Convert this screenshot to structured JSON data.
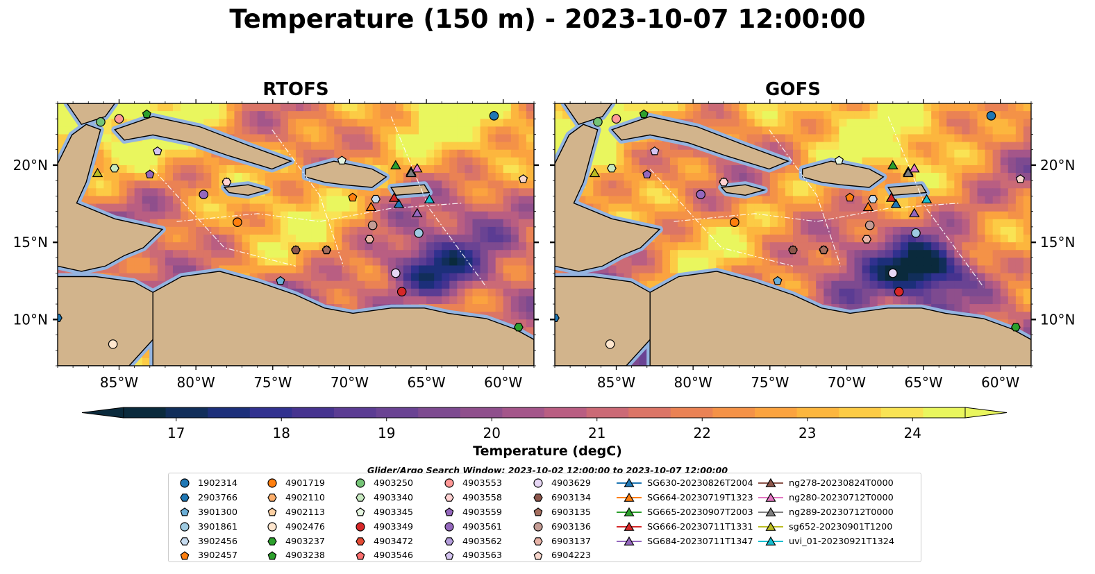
{
  "title": "Temperature (150 m) - 2023-10-07 12:00:00",
  "panels": [
    {
      "title": "RTOFS"
    },
    {
      "title": "GOFS"
    }
  ],
  "axes": {
    "lon_ticks": [
      "85°W",
      "80°W",
      "75°W",
      "70°W",
      "65°W",
      "60°W"
    ],
    "lat_ticks": [
      "20°N",
      "15°N",
      "10°N"
    ],
    "lon_values": [
      -85,
      -80,
      -75,
      -70,
      -65,
      -60
    ],
    "lat_values": [
      20,
      15,
      10
    ],
    "lon_range": [
      -89,
      -58
    ],
    "lat_range": [
      7,
      24
    ]
  },
  "colorbar": {
    "label": "Temperature (degC)",
    "ticks": [
      "17",
      "18",
      "19",
      "20",
      "21",
      "22",
      "23",
      "24"
    ],
    "tick_values": [
      17,
      18,
      19,
      20,
      21,
      22,
      23,
      24
    ],
    "range": [
      16.5,
      24.5
    ],
    "extend": "both",
    "colors": [
      "#0a2a3c",
      "#112e5a",
      "#1c2f7a",
      "#31318f",
      "#46338f",
      "#5b3c93",
      "#6a4393",
      "#7d4a90",
      "#8f4f8c",
      "#a4568a",
      "#b95e82",
      "#cb6a76",
      "#db7566",
      "#ea8254",
      "#f49247",
      "#fba33f",
      "#fcb63e",
      "#fccb45",
      "#f9e354",
      "#e9f65e"
    ]
  },
  "search_window": "Glider/Argo Search Window: 2023-10-02 12:00:00 to 2023-10-07 12:00:00",
  "legend": {
    "columns": [
      [
        {
          "label": "1902314",
          "marker": "circle",
          "color": "#1f77b4"
        },
        {
          "label": "2903766",
          "marker": "hexagon",
          "color": "#1f77b4"
        },
        {
          "label": "3901300",
          "marker": "pentagon",
          "color": "#6baed6"
        },
        {
          "label": "3901861",
          "marker": "circle",
          "color": "#9ecae1"
        },
        {
          "label": "3902456",
          "marker": "hexagon",
          "color": "#c6dbef"
        },
        {
          "label": "3902457",
          "marker": "pentagon",
          "color": "#ff7f0e"
        }
      ],
      [
        {
          "label": "4901719",
          "marker": "circle",
          "color": "#ff7f0e"
        },
        {
          "label": "4902110",
          "marker": "hexagon",
          "color": "#fdae6b"
        },
        {
          "label": "4902113",
          "marker": "pentagon",
          "color": "#fdd0a2"
        },
        {
          "label": "4902476",
          "marker": "circle",
          "color": "#fee6ce"
        },
        {
          "label": "4903237",
          "marker": "hexagon",
          "color": "#2ca02c"
        },
        {
          "label": "4903238",
          "marker": "pentagon",
          "color": "#2ca02c"
        }
      ],
      [
        {
          "label": "4903250",
          "marker": "circle",
          "color": "#74c476"
        },
        {
          "label": "4903340",
          "marker": "hexagon",
          "color": "#c7e9c0"
        },
        {
          "label": "4903345",
          "marker": "pentagon",
          "color": "#e5f5e0"
        },
        {
          "label": "4903349",
          "marker": "circle",
          "color": "#d62728"
        },
        {
          "label": "4903472",
          "marker": "hexagon",
          "color": "#e34a33"
        },
        {
          "label": "4903546",
          "marker": "pentagon",
          "color": "#fc6e6e"
        }
      ],
      [
        {
          "label": "4903553",
          "marker": "circle",
          "color": "#ff9896"
        },
        {
          "label": "4903558",
          "marker": "hexagon",
          "color": "#ffd1d1"
        },
        {
          "label": "4903559",
          "marker": "pentagon",
          "color": "#9467bd"
        },
        {
          "label": "4903561",
          "marker": "circle",
          "color": "#9467bd"
        },
        {
          "label": "4903562",
          "marker": "hexagon",
          "color": "#b39ddb"
        },
        {
          "label": "4903563",
          "marker": "pentagon",
          "color": "#d4c4f0"
        }
      ],
      [
        {
          "label": "4903629",
          "marker": "circle",
          "color": "#e7d7f5"
        },
        {
          "label": "6903134",
          "marker": "hexagon",
          "color": "#8c564b"
        },
        {
          "label": "6903135",
          "marker": "pentagon",
          "color": "#a56e5f"
        },
        {
          "label": "6903136",
          "marker": "circle",
          "color": "#c49c94"
        },
        {
          "label": "6903137",
          "marker": "hexagon",
          "color": "#e8b4a8"
        },
        {
          "label": "6904223",
          "marker": "pentagon",
          "color": "#f7d6cc"
        }
      ],
      [
        {
          "label": "SG630-20230826T2004",
          "marker": "triangle-line",
          "color": "#1f77b4"
        },
        {
          "label": "SG664-20230719T1323",
          "marker": "triangle-line",
          "color": "#ff7f0e"
        },
        {
          "label": "SG665-20230907T2003",
          "marker": "triangle-line",
          "color": "#2ca02c"
        },
        {
          "label": "SG666-20230711T1331",
          "marker": "triangle-line",
          "color": "#d62728"
        },
        {
          "label": "SG684-20230711T1347",
          "marker": "triangle-line",
          "color": "#9467bd"
        }
      ],
      [
        {
          "label": "ng278-20230824T0000",
          "marker": "triangle-line",
          "color": "#8c564b"
        },
        {
          "label": "ng280-20230712T0000",
          "marker": "triangle-line",
          "color": "#e377c2"
        },
        {
          "label": "ng289-20230712T0000",
          "marker": "triangle-line",
          "color": "#7f7f7f"
        },
        {
          "label": "sg652-20230901T1200",
          "marker": "triangle-line",
          "color": "#bcbd22"
        },
        {
          "label": "uvi_01-20230921T1324",
          "marker": "triangle-line",
          "color": "#17becf"
        }
      ]
    ]
  },
  "map_colors": {
    "land": "#d2b48c",
    "shelf": "#94b4e0",
    "coast": "#000000",
    "eez": "#ffffff"
  },
  "markers": [
    {
      "id": "1902314",
      "lon": -60.6,
      "lat": 23.2
    },
    {
      "id": "2903766",
      "lon": -89.0,
      "lat": 10.1
    },
    {
      "id": "3901300",
      "lon": -74.5,
      "lat": 12.5
    },
    {
      "id": "3901861",
      "lon": -65.5,
      "lat": 15.6
    },
    {
      "id": "3902456",
      "lon": -68.3,
      "lat": 17.8
    },
    {
      "id": "3902457",
      "lon": -69.8,
      "lat": 17.9
    },
    {
      "id": "4901719",
      "lon": -77.3,
      "lat": 16.3
    },
    {
      "id": "4902110",
      "lon": -68.7,
      "lat": 15.2
    },
    {
      "id": "4902113",
      "lon": -78.0,
      "lat": 18.9
    },
    {
      "id": "4902476",
      "lon": -85.4,
      "lat": 8.4
    },
    {
      "id": "4903237",
      "lon": -59.0,
      "lat": 9.5
    },
    {
      "id": "4903238",
      "lon": -83.2,
      "lat": 23.3
    },
    {
      "id": "4903250",
      "lon": -86.2,
      "lat": 22.8
    },
    {
      "id": "4903340",
      "lon": -85.3,
      "lat": 19.8
    },
    {
      "id": "4903345",
      "lon": -70.5,
      "lat": 20.3
    },
    {
      "id": "4903349",
      "lon": -66.6,
      "lat": 11.8
    },
    {
      "id": "4903472",
      "lon": -71.5,
      "lat": 14.5
    },
    {
      "id": "4903546",
      "lon": -73.5,
      "lat": 14.5
    },
    {
      "id": "4903553",
      "lon": -85.0,
      "lat": 23.0
    },
    {
      "id": "4903558",
      "lon": -78.0,
      "lat": 18.9
    },
    {
      "id": "4903559",
      "lon": -83.0,
      "lat": 19.4
    },
    {
      "id": "4903561",
      "lon": -79.5,
      "lat": 18.1
    },
    {
      "id": "4903562",
      "lon": -68.5,
      "lat": 16.1
    },
    {
      "id": "4903563",
      "lon": -82.5,
      "lat": 20.9
    },
    {
      "id": "4903629",
      "lon": -67.0,
      "lat": 13.0
    },
    {
      "id": "6903134",
      "lon": -73.5,
      "lat": 14.5
    },
    {
      "id": "6903135",
      "lon": -71.5,
      "lat": 14.5
    },
    {
      "id": "6903136",
      "lon": -68.5,
      "lat": 16.1
    },
    {
      "id": "6903137",
      "lon": -68.7,
      "lat": 15.2
    },
    {
      "id": "6904223",
      "lon": -58.7,
      "lat": 19.1
    },
    {
      "id": "SG630-20230826T2004",
      "lon": -66.8,
      "lat": 17.5
    },
    {
      "id": "SG664-20230719T1323",
      "lon": -68.6,
      "lat": 17.3
    },
    {
      "id": "SG665-20230907T2003",
      "lon": -67.0,
      "lat": 20.0
    },
    {
      "id": "SG666-20230711T1331",
      "lon": -67.1,
      "lat": 17.9
    },
    {
      "id": "SG684-20230711T1347",
      "lon": -65.6,
      "lat": 16.9
    },
    {
      "id": "ng278-20230824T0000",
      "lon": -66.0,
      "lat": 19.6
    },
    {
      "id": "ng280-20230712T0000",
      "lon": -65.6,
      "lat": 19.8
    },
    {
      "id": "ng289-20230712T0000",
      "lon": -66.0,
      "lat": 19.5
    },
    {
      "id": "sg652-20230901T1200",
      "lon": -86.4,
      "lat": 19.5
    },
    {
      "id": "uvi_01-20230921T1324",
      "lon": -64.8,
      "lat": 17.8
    }
  ]
}
